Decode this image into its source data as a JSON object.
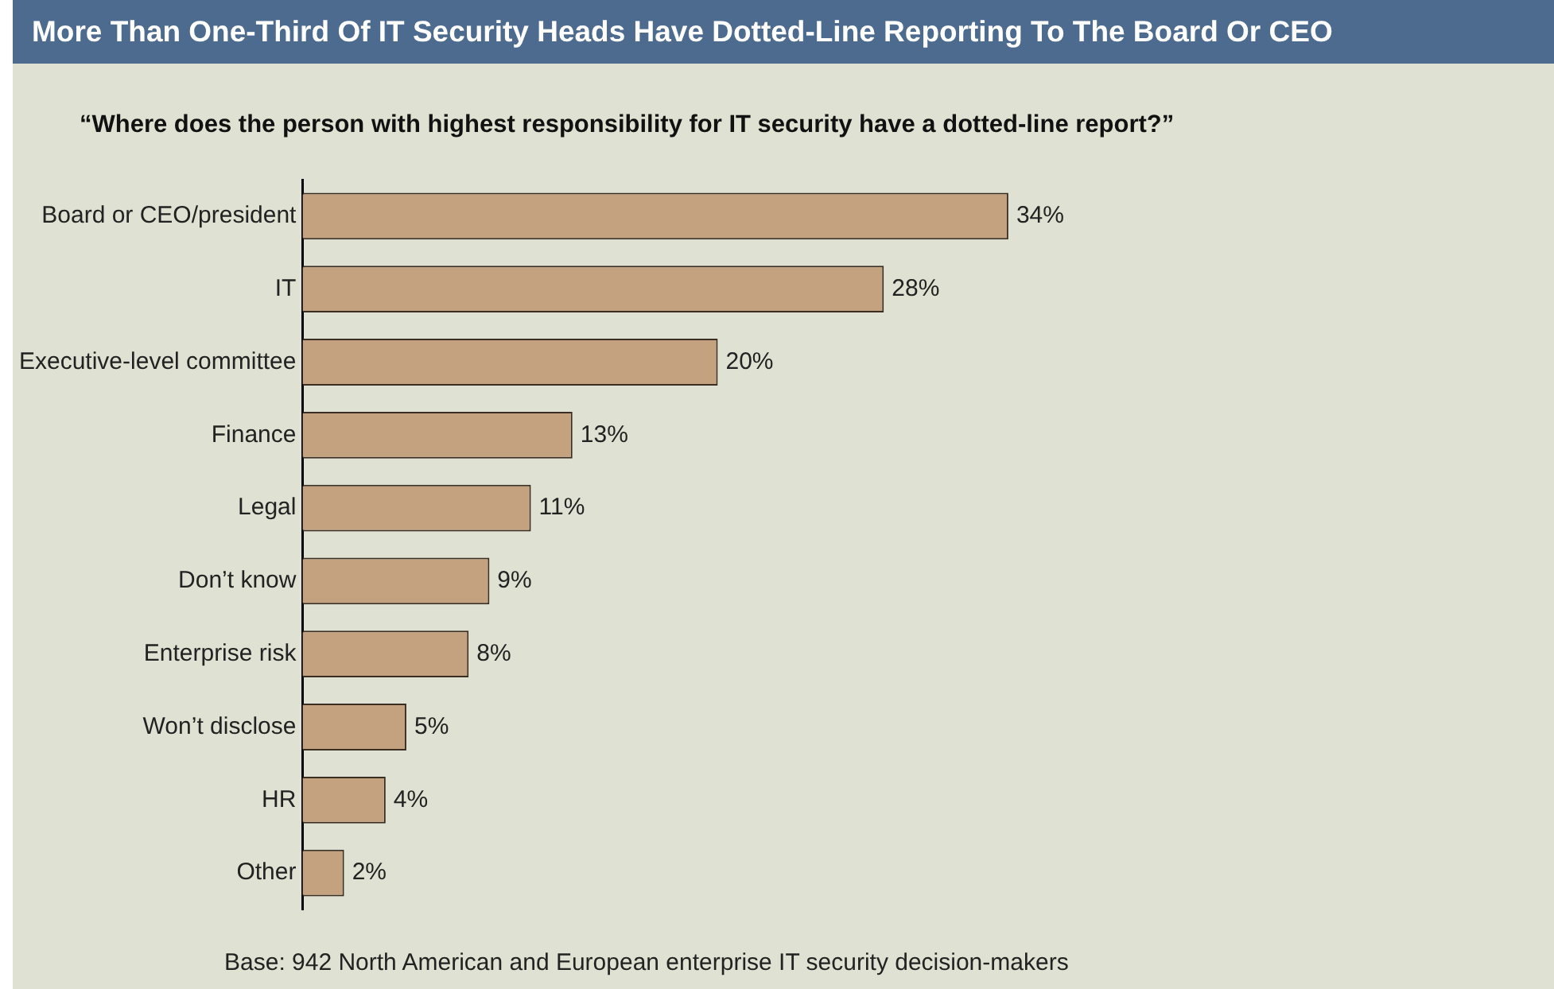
{
  "chart_data": {
    "type": "bar",
    "orientation": "horizontal",
    "title": "More Than One-Third Of IT Security Heads Have Dotted-Line Reporting To The Board Or CEO",
    "subtitle": "“Where does the person with highest responsibility for IT security have a dotted-line report?”",
    "categories": [
      "Board or CEO/president",
      "IT",
      "Executive-level committee",
      "Finance",
      "Legal",
      "Don’t know",
      "Enterprise risk",
      "Won’t disclose",
      "HR",
      "Other"
    ],
    "values": [
      34,
      28,
      20,
      13,
      11,
      9,
      8,
      5,
      4,
      2
    ],
    "value_labels": [
      "34%",
      "28%",
      "20%",
      "13%",
      "11%",
      "9%",
      "8%",
      "5%",
      "4%",
      "2%"
    ],
    "color": "#c4a27f",
    "grid": false,
    "legend": false,
    "tick_labels": "y",
    "annotations": [
      "Base: 942 North American and European enterprise IT security decision-makers"
    ]
  }
}
